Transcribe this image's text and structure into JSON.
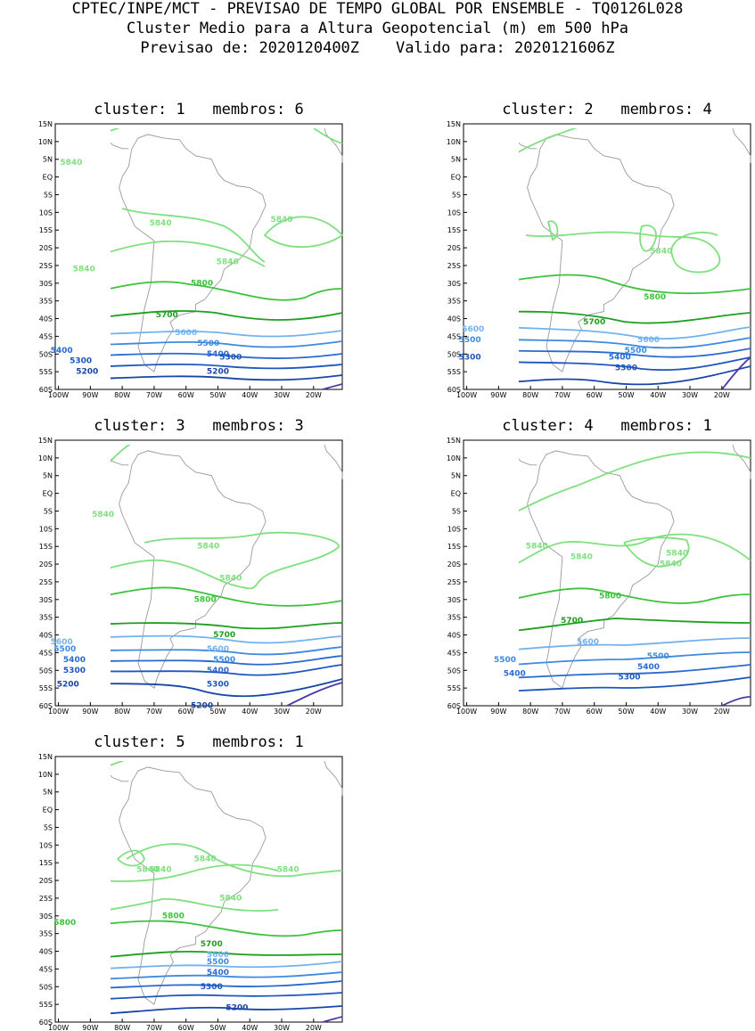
{
  "header": {
    "line1": "CPTEC/INPE/MCT - PREVISAO DE TEMPO GLOBAL POR ENSEMBLE - TQ0126L028",
    "line2": "Cluster Medio para a Altura Geopotencial (m) em 500 hPa",
    "line3": "Previsao de: 2020120400Z    Valido para: 2020121606Z"
  },
  "axes": {
    "lon_labels": [
      "100W",
      "90W",
      "80W",
      "70W",
      "60W",
      "50W",
      "40W",
      "30W",
      "20W"
    ],
    "lat_labels": [
      "15N",
      "10N",
      "5N",
      "EQ",
      "5S",
      "10S",
      "15S",
      "20S",
      "25S",
      "30S",
      "35S",
      "40S",
      "45S",
      "50S",
      "55S",
      "60S"
    ],
    "lon_range": [
      -101,
      -11
    ],
    "lat_range": [
      -60,
      15
    ]
  },
  "colors": {
    "c5840": "#7fe07f",
    "c5800": "#3dc23d",
    "c5700": "#1f9e1f",
    "c5600": "#72b2ee",
    "c5500": "#3d8ae0",
    "c5400": "#2a6ad0",
    "c5300": "#1d56be",
    "c5200": "#1745a8",
    "c5100": "#4b3aa8",
    "coast": "#9a9a9a"
  },
  "panels": [
    {
      "title": "cluster: 1   membros: 6",
      "labels": [
        {
          "v": "5840",
          "lon": -96,
          "lat": 4,
          "c": "c5840"
        },
        {
          "v": "5840",
          "lon": -68,
          "lat": -13,
          "c": "c5840"
        },
        {
          "v": "5840",
          "lon": -30,
          "lat": -12,
          "c": "c5840"
        },
        {
          "v": "5840",
          "lon": -92,
          "lat": -26,
          "c": "c5840"
        },
        {
          "v": "5840",
          "lon": -47,
          "lat": -24,
          "c": "c5840"
        },
        {
          "v": "5800",
          "lon": -55,
          "lat": -30,
          "c": "c5800"
        },
        {
          "v": "5700",
          "lon": -66,
          "lat": -39,
          "c": "c5700"
        },
        {
          "v": "5600",
          "lon": -60,
          "lat": -44,
          "c": "c5600"
        },
        {
          "v": "5500",
          "lon": -53,
          "lat": -47,
          "c": "c5500"
        },
        {
          "v": "5400",
          "lon": -50,
          "lat": -50,
          "c": "c5400"
        },
        {
          "v": "5400",
          "lon": -99,
          "lat": -49,
          "c": "c5400"
        },
        {
          "v": "5300",
          "lon": -93,
          "lat": -52,
          "c": "c5300"
        },
        {
          "v": "5300",
          "lon": -46,
          "lat": -51,
          "c": "c5300"
        },
        {
          "v": "5200",
          "lon": -91,
          "lat": -55,
          "c": "c5200"
        },
        {
          "v": "5200",
          "lon": -50,
          "lat": -55,
          "c": "c5200"
        }
      ]
    },
    {
      "title": "cluster: 2   membros: 4",
      "labels": [
        {
          "v": "5840",
          "lon": -39,
          "lat": -21,
          "c": "c5840"
        },
        {
          "v": "5800",
          "lon": -41,
          "lat": -34,
          "c": "c5800"
        },
        {
          "v": "5700",
          "lon": -60,
          "lat": -41,
          "c": "c5700"
        },
        {
          "v": "5600",
          "lon": -98,
          "lat": -43,
          "c": "c5600"
        },
        {
          "v": "5600",
          "lon": -43,
          "lat": -46,
          "c": "c5600"
        },
        {
          "v": "5500",
          "lon": -99,
          "lat": -46,
          "c": "c5500"
        },
        {
          "v": "5500",
          "lon": -47,
          "lat": -49,
          "c": "c5500"
        },
        {
          "v": "5400",
          "lon": -52,
          "lat": -51,
          "c": "c5400"
        },
        {
          "v": "5300",
          "lon": -99,
          "lat": -51,
          "c": "c5300"
        },
        {
          "v": "5300",
          "lon": -50,
          "lat": -54,
          "c": "c5300"
        }
      ]
    },
    {
      "title": "cluster: 3   membros: 3",
      "labels": [
        {
          "v": "5840",
          "lon": -86,
          "lat": -6,
          "c": "c5840"
        },
        {
          "v": "5840",
          "lon": -53,
          "lat": -15,
          "c": "c5840"
        },
        {
          "v": "5840",
          "lon": -46,
          "lat": -24,
          "c": "c5840"
        },
        {
          "v": "5800",
          "lon": -54,
          "lat": -30,
          "c": "c5800"
        },
        {
          "v": "5700",
          "lon": -48,
          "lat": -40,
          "c": "c5700"
        },
        {
          "v": "5600",
          "lon": -99,
          "lat": -42,
          "c": "c5600"
        },
        {
          "v": "5600",
          "lon": -50,
          "lat": -44,
          "c": "c5600"
        },
        {
          "v": "5500",
          "lon": -98,
          "lat": -44,
          "c": "c5500"
        },
        {
          "v": "5500",
          "lon": -48,
          "lat": -47,
          "c": "c5500"
        },
        {
          "v": "5400",
          "lon": -95,
          "lat": -47,
          "c": "c5400"
        },
        {
          "v": "5400",
          "lon": -50,
          "lat": -50,
          "c": "c5400"
        },
        {
          "v": "5300",
          "lon": -95,
          "lat": -50,
          "c": "c5300"
        },
        {
          "v": "5300",
          "lon": -50,
          "lat": -54,
          "c": "c5300"
        },
        {
          "v": "5200",
          "lon": -97,
          "lat": -54,
          "c": "c5200"
        },
        {
          "v": "5200",
          "lon": -55,
          "lat": -60,
          "c": "c5200"
        }
      ]
    },
    {
      "title": "cluster: 4   membros: 1",
      "labels": [
        {
          "v": "5840",
          "lon": -78,
          "lat": -15,
          "c": "c5840"
        },
        {
          "v": "5840",
          "lon": -64,
          "lat": -18,
          "c": "c5840"
        },
        {
          "v": "5840",
          "lon": -34,
          "lat": -17,
          "c": "c5840"
        },
        {
          "v": "5840",
          "lon": -36,
          "lat": -20,
          "c": "c5840"
        },
        {
          "v": "5800",
          "lon": -55,
          "lat": -29,
          "c": "c5800"
        },
        {
          "v": "5700",
          "lon": -67,
          "lat": -36,
          "c": "c5700"
        },
        {
          "v": "5600",
          "lon": -62,
          "lat": -42,
          "c": "c5600"
        },
        {
          "v": "5500",
          "lon": -88,
          "lat": -47,
          "c": "c5500"
        },
        {
          "v": "5500",
          "lon": -40,
          "lat": -46,
          "c": "c5500"
        },
        {
          "v": "5400",
          "lon": -85,
          "lat": -51,
          "c": "c5400"
        },
        {
          "v": "5400",
          "lon": -43,
          "lat": -49,
          "c": "c5400"
        },
        {
          "v": "5300",
          "lon": -49,
          "lat": -52,
          "c": "c5300"
        }
      ]
    },
    {
      "title": "cluster: 5   membros: 1",
      "labels": [
        {
          "v": "5840",
          "lon": -54,
          "lat": -14,
          "c": "c5840"
        },
        {
          "v": "5840",
          "lon": -72,
          "lat": -17,
          "c": "c5840"
        },
        {
          "v": "5840",
          "lon": -68,
          "lat": -17,
          "c": "c5840"
        },
        {
          "v": "5840",
          "lon": -28,
          "lat": -17,
          "c": "c5840"
        },
        {
          "v": "5840",
          "lon": -46,
          "lat": -25,
          "c": "c5840"
        },
        {
          "v": "5800",
          "lon": -64,
          "lat": -30,
          "c": "c5800"
        },
        {
          "v": "5800",
          "lon": -98,
          "lat": -32,
          "c": "c5800"
        },
        {
          "v": "5700",
          "lon": -52,
          "lat": -38,
          "c": "c5700"
        },
        {
          "v": "5600",
          "lon": -50,
          "lat": -41,
          "c": "c5600"
        },
        {
          "v": "5500",
          "lon": -50,
          "lat": -43,
          "c": "c5500"
        },
        {
          "v": "5400",
          "lon": -50,
          "lat": -46,
          "c": "c5400"
        },
        {
          "v": "5300",
          "lon": -52,
          "lat": -50,
          "c": "c5300"
        },
        {
          "v": "5200",
          "lon": -44,
          "lat": -56,
          "c": "c5200"
        }
      ]
    }
  ]
}
